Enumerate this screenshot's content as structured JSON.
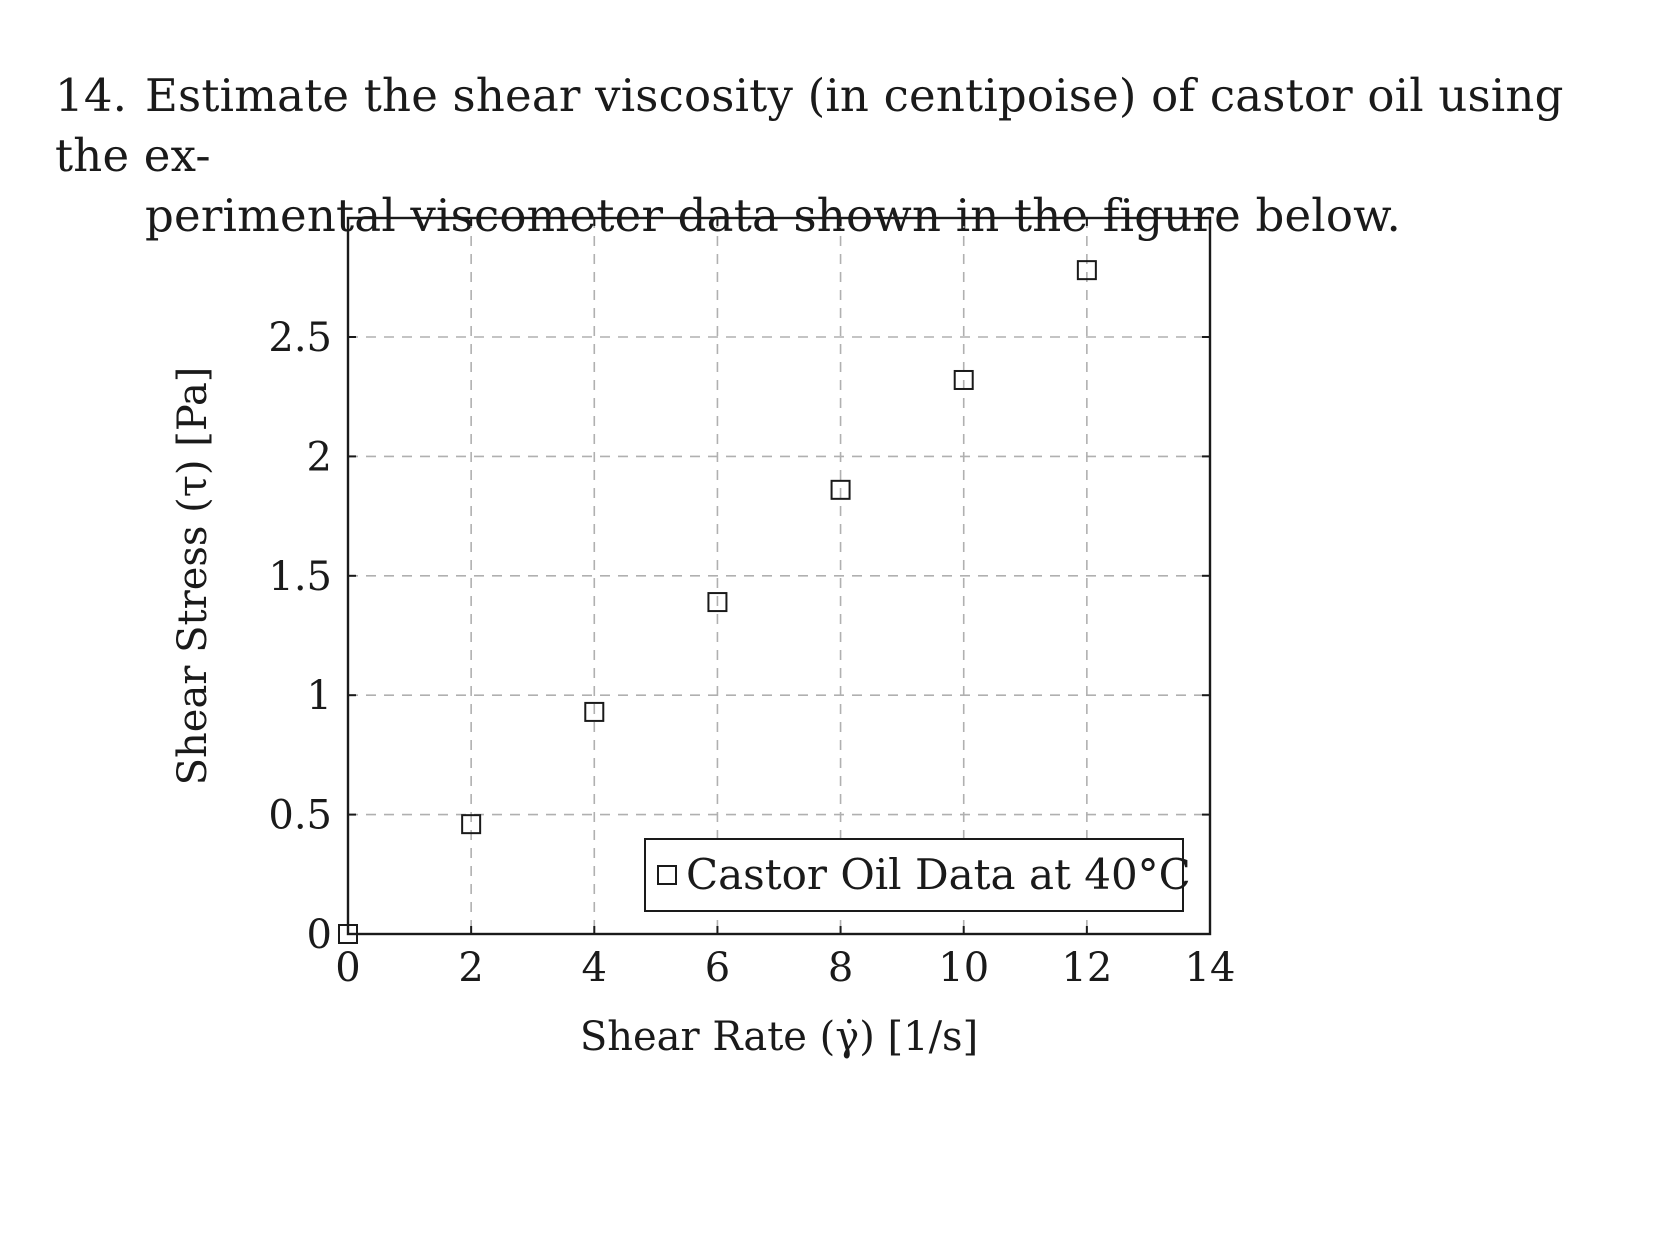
{
  "question": {
    "number": "14.",
    "line1": "Estimate the shear viscosity (in centipoise) of castor oil using the ex-",
    "line2": "perimental viscometer data shown in the figure below."
  },
  "chart_data": {
    "type": "scatter",
    "title": "",
    "xlabel": "Shear Rate (γ̇) [1/s]",
    "ylabel": "Shear Stress (τ) [Pa]",
    "xlim": [
      0,
      14
    ],
    "ylim": [
      0,
      3.0
    ],
    "x_ticks": [
      0,
      2,
      4,
      6,
      8,
      10,
      12,
      14
    ],
    "x_tick_labels": [
      "0",
      "2",
      "4",
      "6",
      "8",
      "10",
      "12",
      "14"
    ],
    "y_ticks": [
      0,
      0.5,
      1,
      1.5,
      2,
      2.5
    ],
    "y_tick_labels": [
      "0",
      "0.5",
      "1",
      "1.5",
      "2",
      "2.5"
    ],
    "grid": true,
    "legend_position": "bottom-right",
    "series": [
      {
        "name": "Castor Oil Data at 40°C",
        "marker": "square",
        "x": [
          0,
          2,
          4,
          6,
          8,
          10,
          12
        ],
        "y": [
          0,
          0.46,
          0.93,
          1.39,
          1.86,
          2.32,
          2.78
        ]
      }
    ]
  },
  "colors": {
    "text": "#1a1a1a",
    "grid": "#b0b0b0",
    "axis": "#1a1a1a",
    "background": "#ffffff"
  }
}
